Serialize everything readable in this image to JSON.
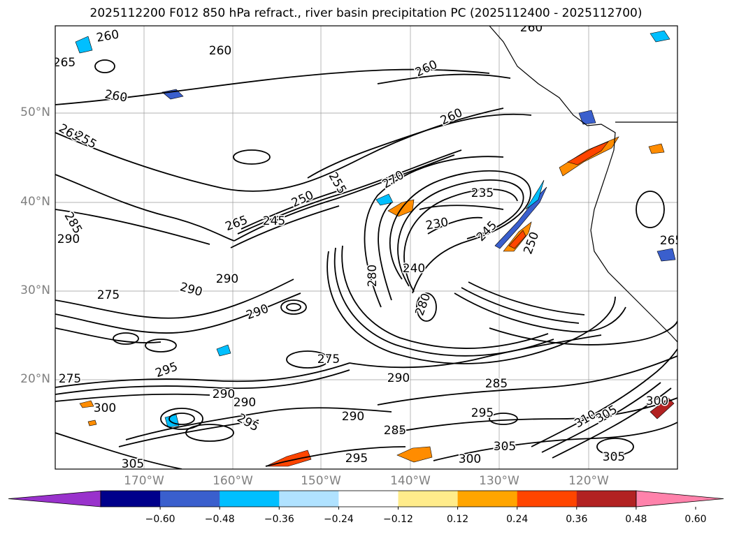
{
  "title": "2025112200 F012 850 hPa refract., river basin precipitation PC (2025112400 - 2025112700)",
  "latitude_labels": [
    "50°N",
    "40°N",
    "30°N",
    "20°N"
  ],
  "longitude_labels": [
    "170°W",
    "160°W",
    "150°W",
    "140°W",
    "130°W",
    "120°W"
  ],
  "contour_labels": [
    {
      "text": "260"
    },
    {
      "text": "265"
    },
    {
      "text": "260"
    },
    {
      "text": "265"
    },
    {
      "text": "260"
    },
    {
      "text": "260"
    },
    {
      "text": "260"
    },
    {
      "text": "260"
    },
    {
      "text": "255"
    },
    {
      "text": "270"
    },
    {
      "text": "265"
    },
    {
      "text": "250"
    },
    {
      "text": "245"
    },
    {
      "text": "235"
    },
    {
      "text": "230"
    },
    {
      "text": "245"
    },
    {
      "text": "250"
    },
    {
      "text": "285"
    },
    {
      "text": "290"
    },
    {
      "text": "290"
    },
    {
      "text": "290"
    },
    {
      "text": "275"
    },
    {
      "text": "280"
    },
    {
      "text": "280"
    },
    {
      "text": "240"
    },
    {
      "text": "290"
    },
    {
      "text": "295"
    },
    {
      "text": "275"
    },
    {
      "text": "290"
    },
    {
      "text": "275"
    },
    {
      "text": "290"
    },
    {
      "text": "290"
    },
    {
      "text": "295"
    },
    {
      "text": "290"
    },
    {
      "text": "285"
    },
    {
      "text": "295"
    },
    {
      "text": "285"
    },
    {
      "text": "300"
    },
    {
      "text": "305"
    },
    {
      "text": "300"
    },
    {
      "text": "305"
    },
    {
      "text": "310"
    },
    {
      "text": "305"
    },
    {
      "text": "300"
    },
    {
      "text": "305"
    },
    {
      "text": "295"
    },
    {
      "text": "265"
    },
    {
      "text": "255"
    }
  ],
  "colorbar": {
    "ticks": [
      "−0.60",
      "−0.48",
      "−0.36",
      "−0.24",
      "−0.12",
      "0.12",
      "0.24",
      "0.36",
      "0.48",
      "0.60"
    ],
    "colors": [
      "#9932cc",
      "#00008b",
      "#3a5fcd",
      "#00bfff",
      "#b0e2ff",
      "#ffffff",
      "#ffec8b",
      "#ffa500",
      "#ff4500",
      "#b22222",
      "#ff82ab"
    ],
    "extend": "both"
  },
  "colors": {
    "contour": "#000000",
    "grid": "#808080",
    "coast": "#000000"
  }
}
